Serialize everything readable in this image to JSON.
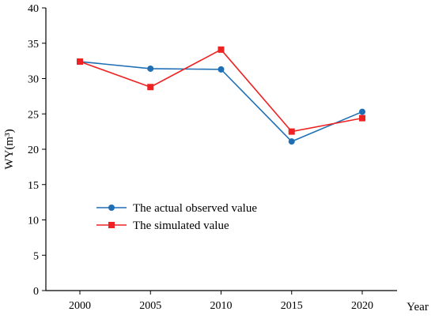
{
  "chart_data": {
    "type": "line",
    "x": [
      2000,
      2005,
      2010,
      2015,
      2020
    ],
    "categories": [
      "2000",
      "2005",
      "2010",
      "2015",
      "2020"
    ],
    "series": [
      {
        "name": "The actual observed value",
        "color": "#1f6fb5",
        "marker": "circle",
        "values": [
          32.4,
          31.4,
          31.3,
          21.1,
          25.3
        ]
      },
      {
        "name": "The simulated value",
        "color": "#ee2222",
        "marker": "square",
        "values": [
          32.4,
          28.8,
          34.1,
          22.5,
          24.4
        ]
      }
    ],
    "yticks": [
      "0",
      "5",
      "10",
      "15",
      "20",
      "25",
      "30",
      "35",
      "40"
    ],
    "ylim": [
      0,
      40
    ],
    "xlabel": "Year",
    "ylabel": "WY(m³)",
    "grid": false,
    "legend_position": "lower-left"
  }
}
